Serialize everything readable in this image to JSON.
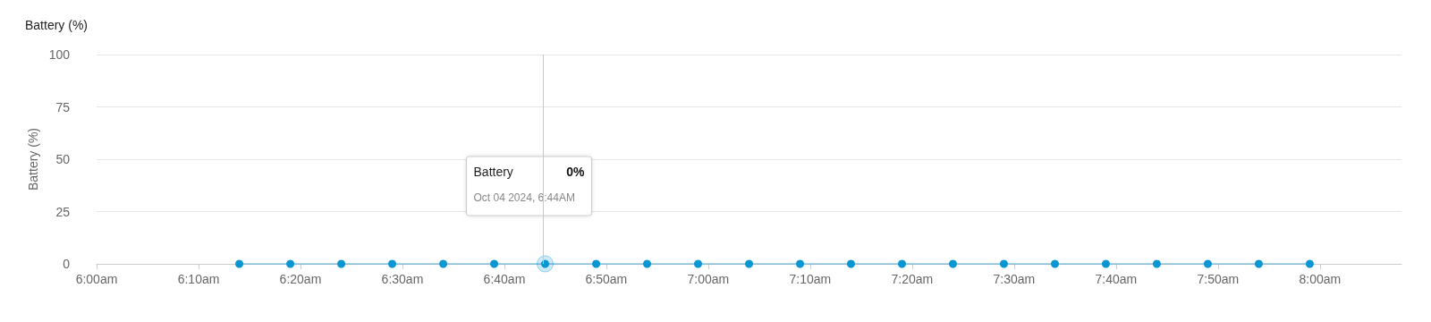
{
  "chart_data": {
    "type": "line",
    "title": "Battery (%)",
    "ylabel": "Battery (%)",
    "x": [
      6.2333,
      6.3167,
      6.4,
      6.4833,
      6.5667,
      6.65,
      6.7333,
      6.8167,
      6.9,
      6.9833,
      7.0667,
      7.15,
      7.2333,
      7.3167,
      7.4,
      7.4833,
      7.5667,
      7.65,
      7.7333,
      7.8167,
      7.9,
      7.9833
    ],
    "series": [
      {
        "color": "#0a96d2",
        "values": [
          0,
          0,
          0,
          0,
          0,
          0,
          0,
          0,
          0,
          0,
          0,
          0,
          0,
          0,
          0,
          0,
          0,
          0,
          0,
          0,
          0,
          0
        ]
      }
    ],
    "xlim": [
      6,
      8.1333
    ],
    "xticks": [
      {
        "value": 6,
        "label": "6:00am"
      },
      {
        "value": 6.1667,
        "label": "6:10am"
      },
      {
        "value": 6.3333,
        "label": "6:20am"
      },
      {
        "value": 6.5,
        "label": "6:30am"
      },
      {
        "value": 6.6667,
        "label": "6:40am"
      },
      {
        "value": 6.8333,
        "label": "6:50am"
      },
      {
        "value": 7,
        "label": "7:00am"
      },
      {
        "value": 7.1667,
        "label": "7:10am"
      },
      {
        "value": 7.3333,
        "label": "7:20am"
      },
      {
        "value": 7.5,
        "label": "7:30am"
      },
      {
        "value": 7.6667,
        "label": "7:40am"
      },
      {
        "value": 7.8333,
        "label": "7:50am"
      },
      {
        "value": 8,
        "label": "8:00am"
      }
    ],
    "ylim": [
      0,
      100
    ],
    "yticks": [
      0,
      25,
      50,
      75,
      100
    ],
    "grid": "y",
    "marker": "circle",
    "line_style": "solid",
    "ref_lines": [
      {
        "axis": "x",
        "value": 6.7333,
        "color": "#c8c8c8"
      }
    ],
    "annotations": [
      "Battery",
      "0%",
      "Oct 04 2024, 6:44AM"
    ]
  }
}
